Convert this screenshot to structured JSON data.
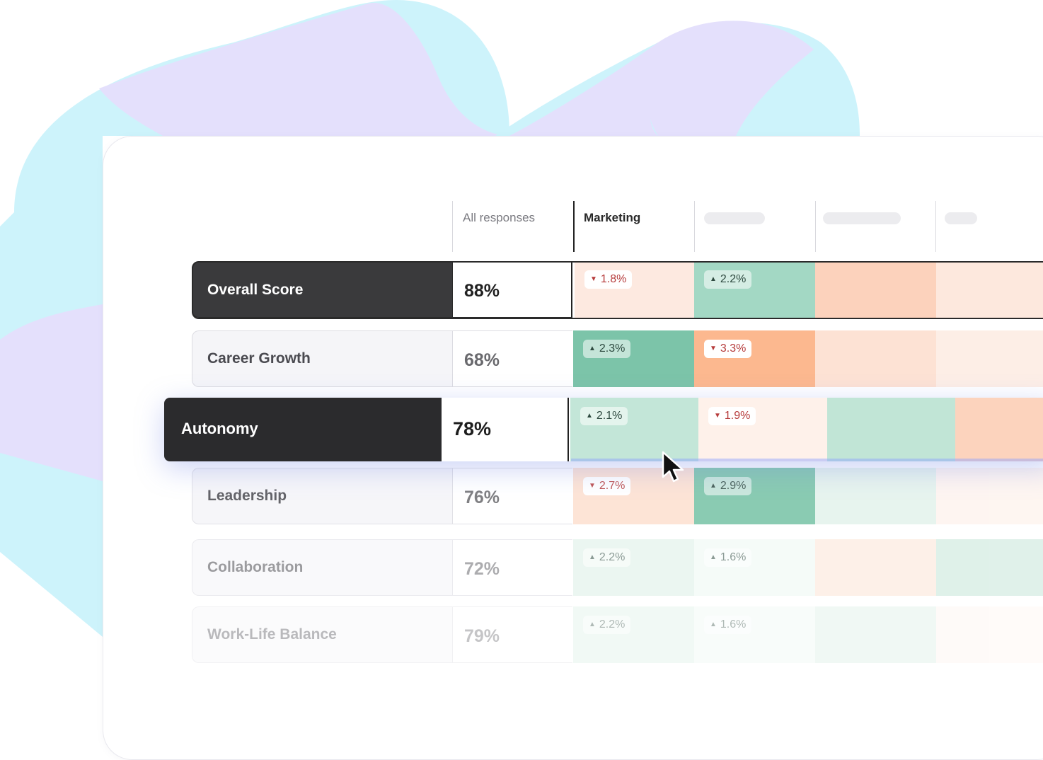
{
  "header": {
    "columns": [
      "All responses",
      "Marketing"
    ]
  },
  "rows": [
    {
      "name": "Overall Score",
      "score": "88%",
      "cells": [
        {
          "value": "1.8%",
          "dir": "down",
          "color": "#fde9e0"
        },
        {
          "value": "2.2%",
          "dir": "up",
          "color": "#a3d8c4"
        },
        {
          "value": "",
          "dir": "blank",
          "color": "#fcd2bc"
        },
        {
          "value": "",
          "dir": "blank",
          "color": "#fde8dd"
        }
      ]
    },
    {
      "name": "Career Growth",
      "score": "68%",
      "cells": [
        {
          "value": "2.3%",
          "dir": "up",
          "color": "#7cc4a9"
        },
        {
          "value": "3.3%",
          "dir": "down",
          "color": "#fcb88f"
        },
        {
          "value": "",
          "dir": "blank",
          "color": "#fde2d4"
        },
        {
          "value": "",
          "dir": "blank",
          "color": "#fdeee6"
        }
      ]
    },
    {
      "name": "Autonomy",
      "score": "78%",
      "cells": [
        {
          "value": "2.1%",
          "dir": "up",
          "color": "#c3e6d8"
        },
        {
          "value": "1.9%",
          "dir": "down",
          "color": "#fef1ea"
        },
        {
          "value": "",
          "dir": "blank",
          "color": "#c1e5d6"
        },
        {
          "value": "",
          "dir": "blank",
          "color": "#fcd3bd"
        }
      ]
    },
    {
      "name": "Leadership",
      "score": "76%",
      "cells": [
        {
          "value": "2.7%",
          "dir": "down",
          "color": "#fde0d0"
        },
        {
          "value": "2.9%",
          "dir": "up",
          "color": "#76c2a5"
        },
        {
          "value": "",
          "dir": "blank",
          "color": "#e3f3ec"
        },
        {
          "value": "",
          "dir": "blank",
          "color": "#fef4ef"
        }
      ]
    },
    {
      "name": "Collaboration",
      "score": "72%",
      "cells": [
        {
          "value": "2.2%",
          "dir": "up",
          "color": "#dcf0e7"
        },
        {
          "value": "1.6%",
          "dir": "up",
          "color": "#eef8f3"
        },
        {
          "value": "",
          "dir": "blank",
          "color": "#fde4d7"
        },
        {
          "value": "",
          "dir": "blank",
          "color": "#c6e6d8"
        }
      ]
    },
    {
      "name": "Work-Life Balance",
      "score": "79%",
      "cells": [
        {
          "value": "2.2%",
          "dir": "up",
          "color": "#dcf0e7"
        },
        {
          "value": "1.6%",
          "dir": "up",
          "color": "#eef8f3"
        },
        {
          "value": "",
          "dir": "blank",
          "color": "#d8eee4"
        },
        {
          "value": "",
          "dir": "blank",
          "color": "#fef4ee"
        }
      ]
    }
  ],
  "colors": {
    "accent_dark": "#2b2b2d",
    "up_text": "#2e4a40",
    "down_text": "#b63b3b",
    "bg_cyan": "#cdf3fb",
    "bg_lavender": "#e4e0fc"
  },
  "icons": [
    "cursor-arrow-icon",
    "triangle-up-icon",
    "triangle-down-icon"
  ]
}
